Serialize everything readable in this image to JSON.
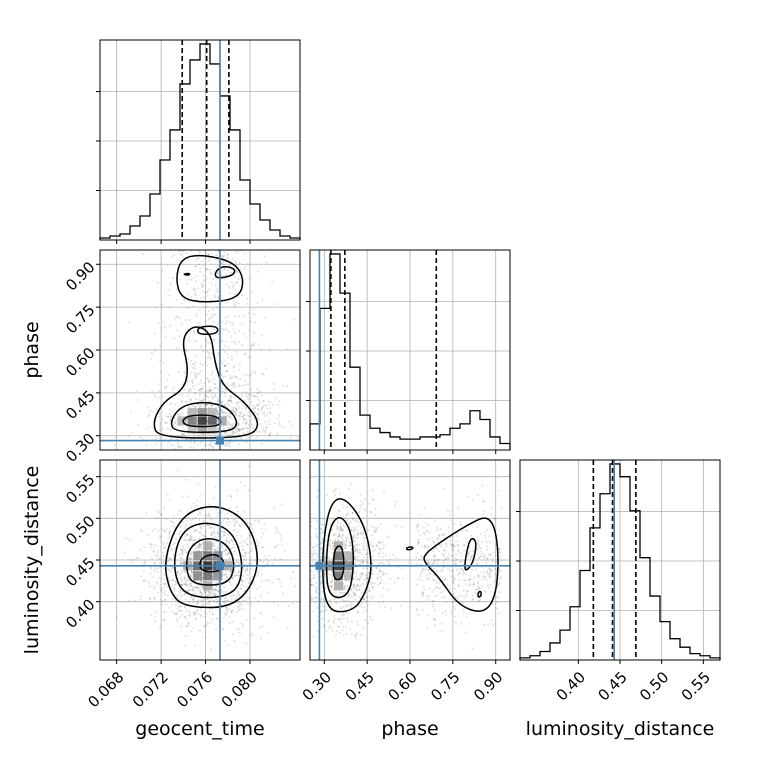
{
  "chart_data": {
    "type": "corner",
    "parameters": [
      "geocent_time",
      "phase",
      "luminosity_distance"
    ],
    "axis_labels": [
      "geocent_time",
      "phase",
      "luminosity_distance"
    ],
    "truths": [
      0.0773,
      0.283,
      0.443
    ],
    "truth_color": "#4682b4",
    "ranges": [
      [
        0.0665,
        0.0845
      ],
      [
        0.25,
        0.95
      ],
      [
        0.33,
        0.57
      ]
    ],
    "ticks": {
      "geocent_time": [
        "0.068",
        "0.072",
        "0.076",
        "0.080"
      ],
      "phase": [
        "0.30",
        "0.45",
        "0.60",
        "0.75",
        "0.90"
      ],
      "luminosity_distance": [
        "0.40",
        "0.45",
        "0.50",
        "0.55"
      ]
    },
    "tick_values": {
      "geocent_time": [
        0.068,
        0.072,
        0.076,
        0.08
      ],
      "phase": [
        0.3,
        0.45,
        0.6,
        0.75,
        0.9
      ],
      "luminosity_distance": [
        0.4,
        0.45,
        0.5,
        0.55
      ]
    },
    "histograms": [
      {
        "parameter": "geocent_time",
        "bin_edges": [
          0.0665,
          0.0674,
          0.0683,
          0.0692,
          0.0701,
          0.071,
          0.0719,
          0.0728,
          0.0737,
          0.0746,
          0.0755,
          0.0764,
          0.0773,
          0.0782,
          0.0791,
          0.08,
          0.0809,
          0.0818,
          0.0827,
          0.0836,
          0.0845
        ],
        "counts": [
          1,
          2,
          3,
          7,
          12,
          23,
          40,
          55,
          78,
          90,
          98,
          88,
          72,
          55,
          30,
          18,
          10,
          5,
          2,
          1
        ],
        "quantiles": [
          0.0739,
          0.0761,
          0.0781
        ]
      },
      {
        "parameter": "phase",
        "bin_edges": [
          0.25,
          0.285,
          0.32,
          0.355,
          0.39,
          0.425,
          0.46,
          0.495,
          0.53,
          0.565,
          0.6,
          0.635,
          0.67,
          0.705,
          0.74,
          0.775,
          0.81,
          0.845,
          0.88,
          0.915,
          0.95
        ],
        "counts": [
          12,
          65,
          90,
          72,
          38,
          16,
          10,
          8,
          6,
          5,
          5,
          6,
          6,
          7,
          10,
          12,
          18,
          14,
          6,
          3
        ],
        "quantiles": [
          0.323,
          0.372,
          0.692
        ]
      },
      {
        "parameter": "luminosity_distance",
        "bin_edges": [
          0.33,
          0.342,
          0.354,
          0.366,
          0.378,
          0.39,
          0.402,
          0.414,
          0.426,
          0.438,
          0.45,
          0.462,
          0.474,
          0.486,
          0.498,
          0.51,
          0.522,
          0.534,
          0.546,
          0.558,
          0.57
        ],
        "counts": [
          1,
          2,
          4,
          8,
          14,
          25,
          42,
          62,
          78,
          92,
          86,
          70,
          48,
          30,
          18,
          10,
          6,
          3,
          2,
          1
        ],
        "quantiles": [
          0.418,
          0.441,
          0.469
        ]
      }
    ],
    "pairs": [
      {
        "x": "geocent_time",
        "y": "phase",
        "point_cloud": {
          "x_mean": 0.0768,
          "x_sd": 0.0022,
          "y_mean": 0.36,
          "y_sd": 0.05
        },
        "density_cells": [
          {
            "x": 0.0757,
            "y": 0.352,
            "level": 0.85
          },
          {
            "x": 0.0766,
            "y": 0.352,
            "level": 0.7
          },
          {
            "x": 0.0748,
            "y": 0.352,
            "level": 0.55
          },
          {
            "x": 0.0757,
            "y": 0.381,
            "level": 0.45
          },
          {
            "x": 0.0757,
            "y": 0.323,
            "level": 0.4
          },
          {
            "x": 0.0775,
            "y": 0.352,
            "level": 0.35
          },
          {
            "x": 0.0739,
            "y": 0.352,
            "level": 0.3
          },
          {
            "x": 0.0748,
            "y": 0.381,
            "level": 0.3
          },
          {
            "x": 0.0766,
            "y": 0.381,
            "level": 0.3
          },
          {
            "x": 0.0748,
            "y": 0.323,
            "level": 0.25
          },
          {
            "x": 0.0766,
            "y": 0.323,
            "level": 0.25
          }
        ],
        "contours": [
          [
            [
              0.0745,
              0.332
            ],
            [
              0.077,
              0.332
            ],
            [
              0.0775,
              0.35
            ],
            [
              0.0768,
              0.372
            ],
            [
              0.0745,
              0.372
            ],
            [
              0.0738,
              0.35
            ]
          ],
          [
            [
              0.0732,
              0.312
            ],
            [
              0.0782,
              0.312
            ],
            [
              0.079,
              0.345
            ],
            [
              0.078,
              0.4
            ],
            [
              0.076,
              0.42
            ],
            [
              0.0738,
              0.405
            ],
            [
              0.0728,
              0.35
            ]
          ],
          [
            [
              0.0718,
              0.292
            ],
            [
              0.0798,
              0.292
            ],
            [
              0.081,
              0.34
            ],
            [
              0.0795,
              0.42
            ],
            [
              0.0775,
              0.475
            ],
            [
              0.0768,
              0.56
            ],
            [
              0.0765,
              0.66
            ],
            [
              0.075,
              0.69
            ],
            [
              0.0738,
              0.64
            ],
            [
              0.0745,
              0.53
            ],
            [
              0.074,
              0.46
            ],
            [
              0.0722,
              0.42
            ],
            [
              0.0712,
              0.345
            ]
          ],
          [
            [
              0.0753,
              0.655
            ],
            [
              0.0768,
              0.655
            ],
            [
              0.0772,
              0.67
            ],
            [
              0.0768,
              0.685
            ],
            [
              0.0753,
              0.68
            ]
          ],
          [
            [
              0.0738,
              0.78
            ],
            [
              0.076,
              0.765
            ],
            [
              0.079,
              0.78
            ],
            [
              0.0795,
              0.85
            ],
            [
              0.0785,
              0.91
            ],
            [
              0.0755,
              0.935
            ],
            [
              0.0738,
              0.92
            ],
            [
              0.0733,
              0.85
            ]
          ],
          [
            [
              0.077,
              0.85
            ],
            [
              0.0785,
              0.86
            ],
            [
              0.0787,
              0.885
            ],
            [
              0.0775,
              0.895
            ],
            [
              0.0768,
              0.87
            ]
          ],
          [
            [
              0.0741,
              0.863
            ],
            [
              0.0745,
              0.862
            ],
            [
              0.0746,
              0.868
            ],
            [
              0.0741,
              0.867
            ]
          ]
        ]
      },
      {
        "x": "geocent_time",
        "y": "luminosity_distance",
        "point_cloud": {
          "x_mean": 0.0762,
          "x_sd": 0.0022,
          "y_mean": 0.443,
          "y_sd": 0.03
        },
        "density_cells": [
          {
            "x": 0.0762,
            "y": 0.443,
            "level": 0.9
          },
          {
            "x": 0.0771,
            "y": 0.443,
            "level": 0.75
          },
          {
            "x": 0.0753,
            "y": 0.443,
            "level": 0.65
          },
          {
            "x": 0.0762,
            "y": 0.455,
            "level": 0.6
          },
          {
            "x": 0.0762,
            "y": 0.431,
            "level": 0.6
          },
          {
            "x": 0.0771,
            "y": 0.455,
            "level": 0.5
          },
          {
            "x": 0.0753,
            "y": 0.431,
            "level": 0.5
          },
          {
            "x": 0.0771,
            "y": 0.431,
            "level": 0.45
          },
          {
            "x": 0.0753,
            "y": 0.455,
            "level": 0.45
          },
          {
            "x": 0.0744,
            "y": 0.443,
            "level": 0.35
          },
          {
            "x": 0.078,
            "y": 0.443,
            "level": 0.35
          },
          {
            "x": 0.0762,
            "y": 0.467,
            "level": 0.35
          },
          {
            "x": 0.0762,
            "y": 0.419,
            "level": 0.35
          }
        ],
        "contours": [
          [
            [
              0.0755,
              0.436
            ],
            [
              0.0775,
              0.436
            ],
            [
              0.0777,
              0.45
            ],
            [
              0.0768,
              0.458
            ],
            [
              0.0755,
              0.452
            ]
          ],
          [
            [
              0.0748,
              0.42
            ],
            [
              0.078,
              0.42
            ],
            [
              0.0787,
              0.443
            ],
            [
              0.078,
              0.47
            ],
            [
              0.076,
              0.478
            ],
            [
              0.0745,
              0.465
            ],
            [
              0.0742,
              0.44
            ]
          ],
          [
            [
              0.074,
              0.405
            ],
            [
              0.0785,
              0.405
            ],
            [
              0.0795,
              0.44
            ],
            [
              0.0785,
              0.485
            ],
            [
              0.076,
              0.497
            ],
            [
              0.0738,
              0.485
            ],
            [
              0.073,
              0.443
            ]
          ],
          [
            [
              0.0742,
              0.393
            ],
            [
              0.0788,
              0.393
            ],
            [
              0.081,
              0.44
            ],
            [
              0.08,
              0.495
            ],
            [
              0.077,
              0.518
            ],
            [
              0.0738,
              0.505
            ],
            [
              0.0722,
              0.45
            ],
            [
              0.0728,
              0.41
            ]
          ]
        ]
      },
      {
        "x": "phase",
        "y": "luminosity_distance",
        "point_cloud": {
          "x_mean": 0.37,
          "x_sd": 0.06,
          "y_mean": 0.443,
          "y_sd": 0.03
        },
        "density_cells": [
          {
            "x": 0.35,
            "y": 0.443,
            "level": 0.85
          },
          {
            "x": 0.35,
            "y": 0.455,
            "level": 0.6
          },
          {
            "x": 0.35,
            "y": 0.431,
            "level": 0.6
          },
          {
            "x": 0.385,
            "y": 0.443,
            "level": 0.5
          },
          {
            "x": 0.315,
            "y": 0.443,
            "level": 0.45
          },
          {
            "x": 0.35,
            "y": 0.467,
            "level": 0.35
          },
          {
            "x": 0.35,
            "y": 0.419,
            "level": 0.35
          },
          {
            "x": 0.385,
            "y": 0.455,
            "level": 0.3
          },
          {
            "x": 0.385,
            "y": 0.431,
            "level": 0.3
          }
        ],
        "contours": [
          [
            [
              0.335,
              0.425
            ],
            [
              0.365,
              0.428
            ],
            [
              0.37,
              0.45
            ],
            [
              0.36,
              0.468
            ],
            [
              0.338,
              0.465
            ],
            [
              0.33,
              0.445
            ]
          ],
          [
            [
              0.315,
              0.405
            ],
            [
              0.385,
              0.405
            ],
            [
              0.405,
              0.443
            ],
            [
              0.395,
              0.485
            ],
            [
              0.355,
              0.505
            ],
            [
              0.318,
              0.49
            ],
            [
              0.305,
              0.445
            ]
          ],
          [
            [
              0.305,
              0.388
            ],
            [
              0.4,
              0.388
            ],
            [
              0.445,
              0.41
            ],
            [
              0.47,
              0.443
            ],
            [
              0.44,
              0.495
            ],
            [
              0.365,
              0.528
            ],
            [
              0.315,
              0.515
            ],
            [
              0.29,
              0.45
            ]
          ],
          [
            [
              0.588,
              0.462
            ],
            [
              0.61,
              0.463
            ],
            [
              0.61,
              0.466
            ],
            [
              0.588,
              0.465
            ]
          ],
          [
            [
              0.655,
              0.445
            ],
            [
              0.7,
              0.43
            ],
            [
              0.77,
              0.395
            ],
            [
              0.86,
              0.385
            ],
            [
              0.905,
              0.41
            ],
            [
              0.91,
              0.47
            ],
            [
              0.88,
              0.505
            ],
            [
              0.8,
              0.492
            ],
            [
              0.7,
              0.47
            ],
            [
              0.645,
              0.455
            ]
          ],
          [
            [
              0.79,
              0.435
            ],
            [
              0.82,
              0.445
            ],
            [
              0.835,
              0.472
            ],
            [
              0.812,
              0.478
            ],
            [
              0.795,
              0.455
            ]
          ],
          [
            [
              0.838,
              0.405
            ],
            [
              0.85,
              0.407
            ],
            [
              0.848,
              0.413
            ],
            [
              0.838,
              0.411
            ]
          ]
        ]
      }
    ]
  }
}
